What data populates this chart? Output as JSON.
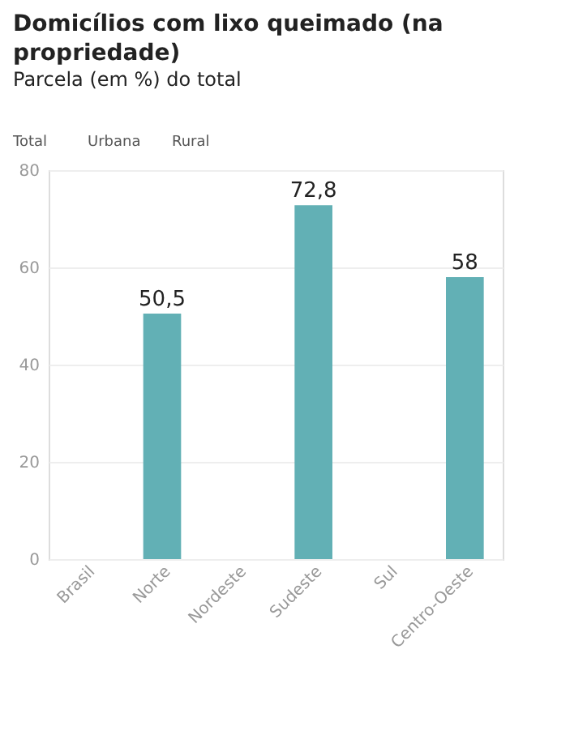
{
  "chart_data": {
    "type": "bar",
    "title": "Domicílios com lixo queimado (na propriedade)",
    "subtitle": "Parcela (em %) do total",
    "annotations": [
      "Total",
      "Urbana",
      "Rural"
    ],
    "categories": [
      "Brasil",
      "Norte",
      "Nordeste",
      "Sudeste",
      "Sul",
      "Centro-Oeste"
    ],
    "values": [
      null,
      50.5,
      null,
      72.8,
      null,
      58
    ],
    "value_labels": [
      null,
      "50,5",
      null,
      "72,8",
      null,
      "58"
    ],
    "color": "#62b0b5",
    "ylim": [
      0,
      80
    ],
    "yticks": [
      0,
      20,
      40,
      60,
      80
    ],
    "grid": "y"
  }
}
